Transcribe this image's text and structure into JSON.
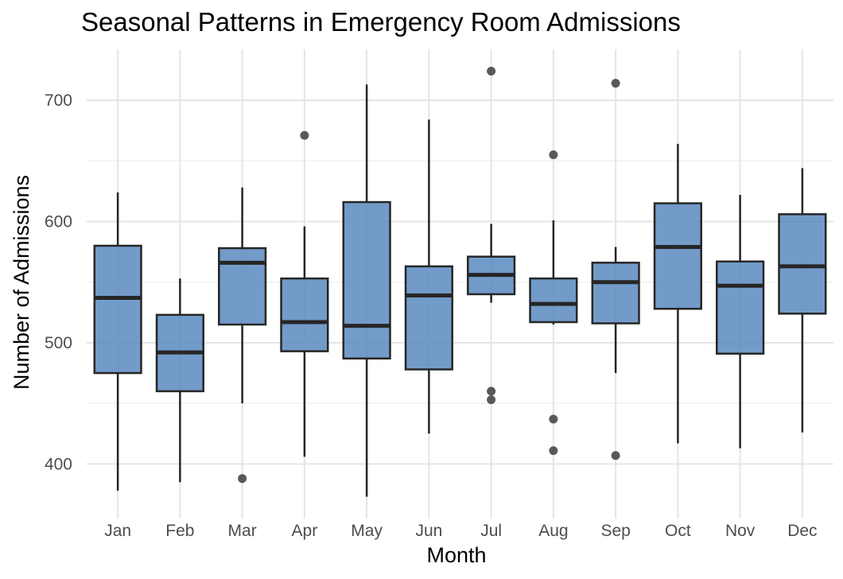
{
  "chart_data": {
    "type": "box",
    "title": "Seasonal Patterns in Emergency Room Admissions",
    "xlabel": "Month",
    "ylabel": "Number of Admissions",
    "ylim": [
      355,
      742
    ],
    "yticks": [
      400,
      500,
      600,
      700
    ],
    "y_minor_ticks": [
      450,
      550,
      650
    ],
    "grid": true,
    "legend": "none",
    "box_color": "#5b8abf",
    "box_opacity": 0.85,
    "line_color": "#262626",
    "categories": [
      "Jan",
      "Feb",
      "Mar",
      "Apr",
      "May",
      "Jun",
      "Jul",
      "Aug",
      "Sep",
      "Oct",
      "Nov",
      "Dec"
    ],
    "boxes": [
      {
        "month": "Jan",
        "lower_whisker": 378,
        "q1": 475,
        "median": 537,
        "q3": 580,
        "upper_whisker": 624,
        "outliers": []
      },
      {
        "month": "Feb",
        "lower_whisker": 385,
        "q1": 460,
        "median": 492,
        "q3": 523,
        "upper_whisker": 553,
        "outliers": []
      },
      {
        "month": "Mar",
        "lower_whisker": 450,
        "q1": 515,
        "median": 566,
        "q3": 578,
        "upper_whisker": 628,
        "outliers": [
          388
        ]
      },
      {
        "month": "Apr",
        "lower_whisker": 406,
        "q1": 493,
        "median": 517,
        "q3": 553,
        "upper_whisker": 596,
        "outliers": [
          671
        ]
      },
      {
        "month": "May",
        "lower_whisker": 373,
        "q1": 487,
        "median": 514,
        "q3": 616,
        "upper_whisker": 713,
        "outliers": []
      },
      {
        "month": "Jun",
        "lower_whisker": 425,
        "q1": 478,
        "median": 539,
        "q3": 563,
        "upper_whisker": 684,
        "outliers": []
      },
      {
        "month": "Jul",
        "lower_whisker": 533,
        "q1": 540,
        "median": 556,
        "q3": 571,
        "upper_whisker": 598,
        "outliers": [
          724,
          460,
          453
        ]
      },
      {
        "month": "Aug",
        "lower_whisker": 515,
        "q1": 517,
        "median": 532,
        "q3": 553,
        "upper_whisker": 601,
        "outliers": [
          655,
          437,
          411
        ]
      },
      {
        "month": "Sep",
        "lower_whisker": 475,
        "q1": 516,
        "median": 550,
        "q3": 566,
        "upper_whisker": 579,
        "outliers": [
          714,
          407
        ]
      },
      {
        "month": "Oct",
        "lower_whisker": 417,
        "q1": 528,
        "median": 579,
        "q3": 615,
        "upper_whisker": 664,
        "outliers": []
      },
      {
        "month": "Nov",
        "lower_whisker": 413,
        "q1": 491,
        "median": 547,
        "q3": 567,
        "upper_whisker": 622,
        "outliers": []
      },
      {
        "month": "Dec",
        "lower_whisker": 426,
        "q1": 524,
        "median": 563,
        "q3": 606,
        "upper_whisker": 644,
        "outliers": []
      }
    ]
  }
}
